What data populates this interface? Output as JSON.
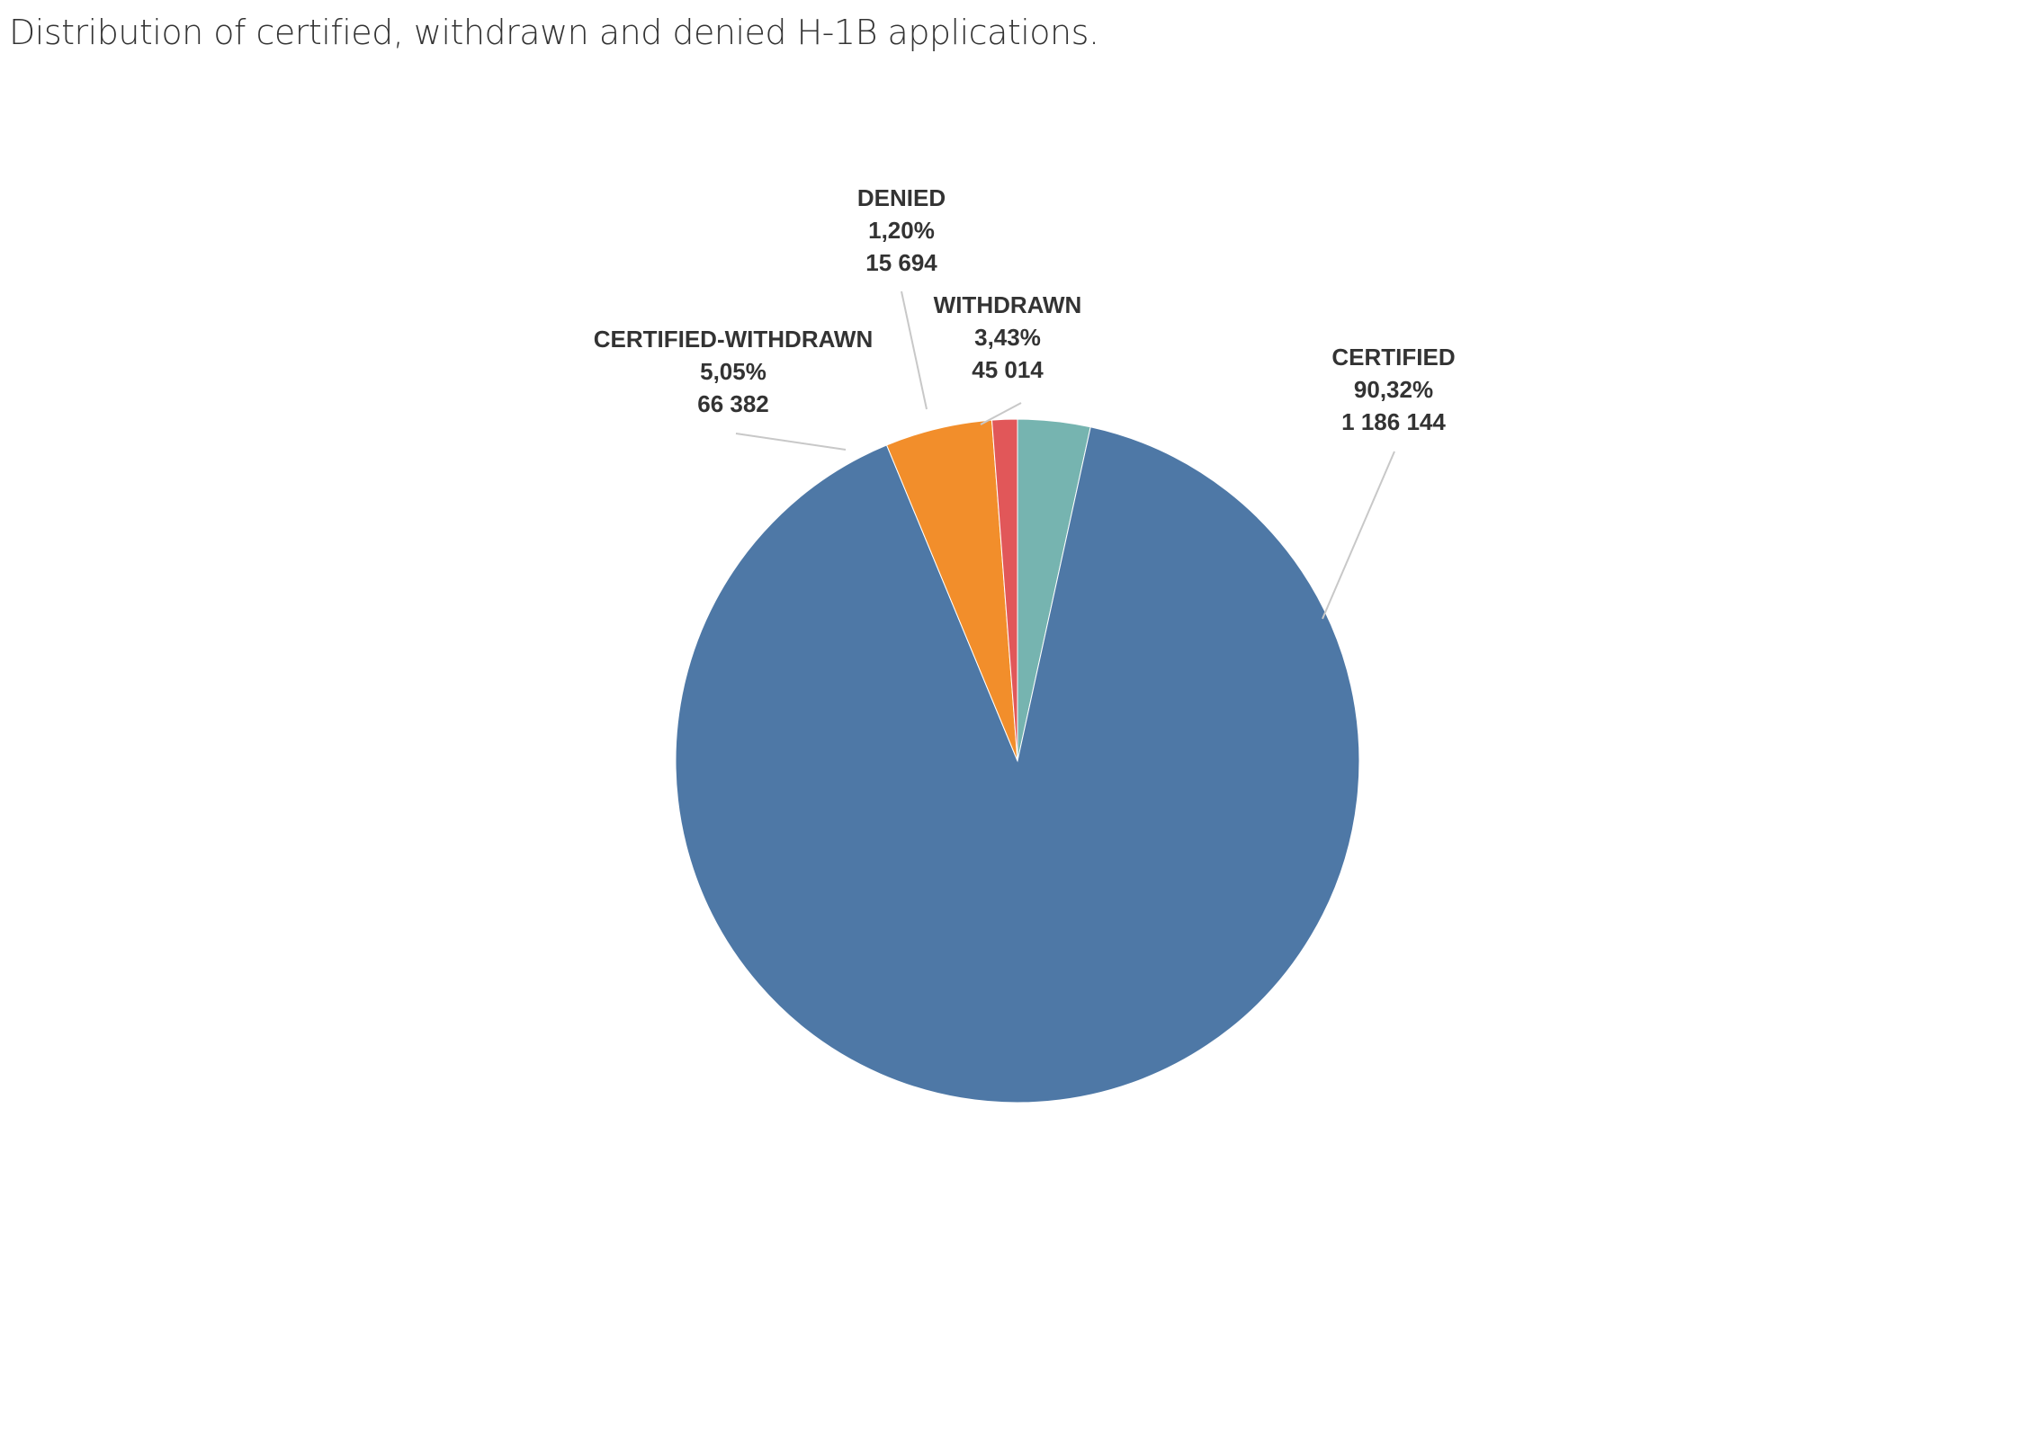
{
  "title": "Distribution of certified, withdrawn and denied H-1B applications.",
  "chart_data": {
    "type": "pie",
    "title": "Distribution of certified, withdrawn and denied H-1B applications.",
    "slices": [
      {
        "label": "WITHDRAWN",
        "percent_label": "3,43%",
        "value_label": "45 014",
        "value": 45014,
        "percent": 3.43,
        "color": "#76b4b0"
      },
      {
        "label": "CERTIFIED",
        "percent_label": "90,32%",
        "value_label": "1 186 144",
        "value": 1186144,
        "percent": 90.32,
        "color": "#4e78a6"
      },
      {
        "label": "CERTIFIED-WITHDRAWN",
        "percent_label": "5,05%",
        "value_label": "66 382",
        "value": 66382,
        "percent": 5.05,
        "color": "#f28e2b"
      },
      {
        "label": "DENIED",
        "percent_label": "1,20%",
        "value_label": "15 694",
        "value": 15694,
        "percent": 1.2,
        "color": "#e15759"
      }
    ],
    "start_angle": "12 o'clock",
    "direction": "clockwise",
    "legend": "none",
    "labels": "outside with leader lines"
  }
}
